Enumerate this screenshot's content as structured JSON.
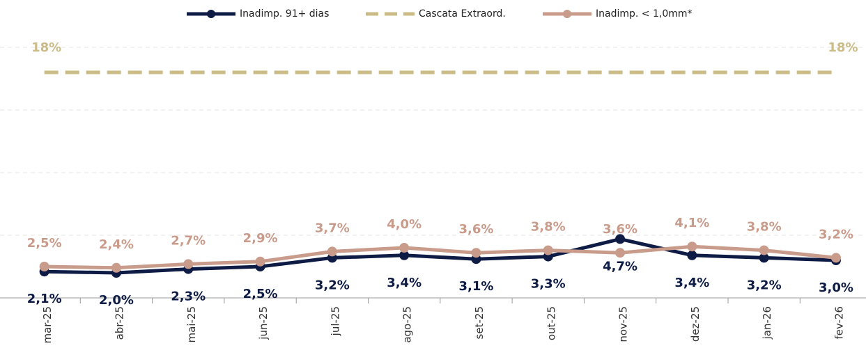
{
  "chart_data": {
    "type": "line",
    "categories": [
      "mar-25",
      "abr-25",
      "mai-25",
      "jun-25",
      "jul-25",
      "ago-25",
      "set-25",
      "out-25",
      "nov-25",
      "dez-25",
      "jan-26",
      "fev-26"
    ],
    "series": [
      {
        "name": "Inadimp. 91+ dias",
        "color": "#0d1b45",
        "markers": true,
        "values": [
          2.1,
          2.0,
          2.3,
          2.5,
          3.2,
          3.4,
          3.1,
          3.3,
          4.7,
          3.4,
          3.2,
          3.0
        ],
        "value_labels": [
          "2,1%",
          "2,0%",
          "2,3%",
          "2,5%",
          "3,2%",
          "3,4%",
          "3,1%",
          "3,3%",
          "4,7%",
          "3,4%",
          "3,2%",
          "3,0%"
        ]
      },
      {
        "name": "Cascata Extraord.",
        "color": "#cbbb86",
        "dashed": true,
        "values": [
          18,
          18,
          18,
          18,
          18,
          18,
          18,
          18,
          18,
          18,
          18,
          18
        ],
        "value_labels": [
          "18%",
          null,
          null,
          null,
          null,
          null,
          null,
          null,
          null,
          null,
          null,
          "18%"
        ]
      },
      {
        "name": "Inadimp. < 1,0mm*",
        "color": "#c99b8b",
        "markers": true,
        "values": [
          2.5,
          2.4,
          2.7,
          2.9,
          3.7,
          4.0,
          3.6,
          3.8,
          3.6,
          4.1,
          3.8,
          3.2
        ],
        "value_labels": [
          "2,5%",
          "2,4%",
          "2,7%",
          "2,9%",
          "3,7%",
          "4,0%",
          "3,6%",
          "3,8%",
          "3,6%",
          "4,1%",
          "3,8%",
          "3,2%"
        ]
      }
    ],
    "ylim": [
      0,
      22
    ],
    "yticks": [
      0,
      5,
      10,
      15,
      20
    ],
    "grid": true,
    "legend": "top"
  }
}
